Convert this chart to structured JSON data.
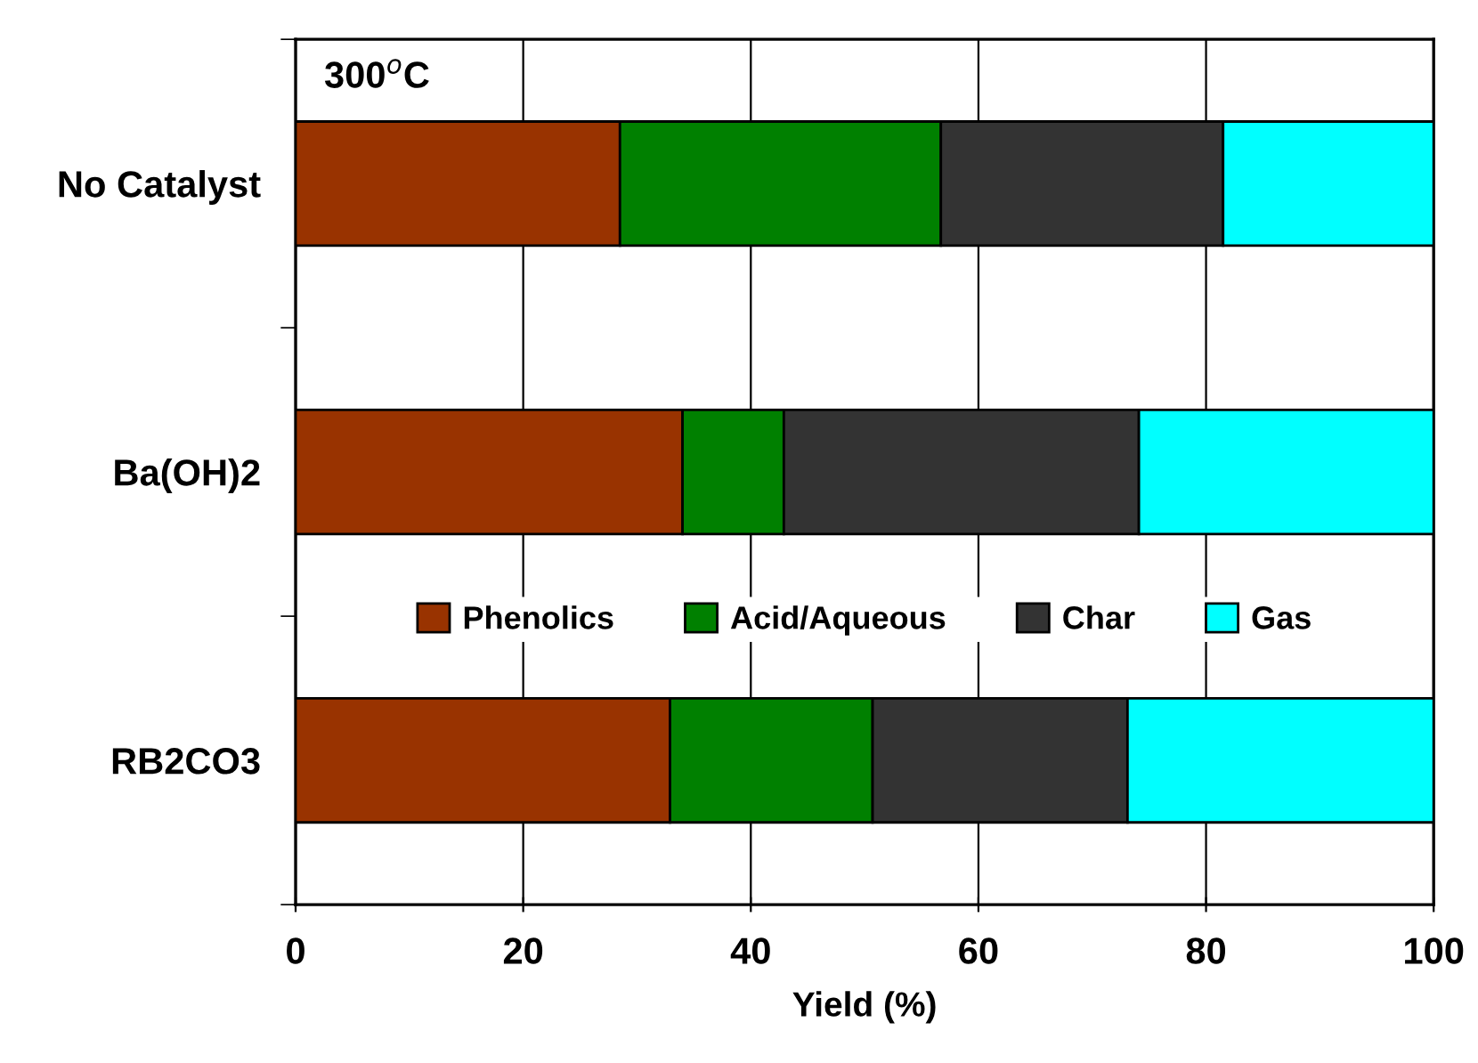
{
  "chart_data": {
    "type": "bar",
    "orientation": "horizontal",
    "stacked": true,
    "annotations": [
      "300$^{o}$C"
    ],
    "categories": [
      "No Catalyst",
      "Ba(OH)2",
      "RB2CO3"
    ],
    "series": [
      {
        "name": "Phenolics",
        "color": "#993300",
        "values": [
          28.5,
          34.0,
          32.9
        ]
      },
      {
        "name": "Acid/Aqueous",
        "color": "#008000",
        "values": [
          28.2,
          8.9,
          17.8
        ]
      },
      {
        "name": "Char",
        "color": "#333333",
        "values": [
          24.8,
          31.2,
          22.4
        ]
      },
      {
        "name": "Gas",
        "color": "#00ffff",
        "values": [
          18.5,
          25.9,
          26.9
        ]
      }
    ],
    "xlabel": "Yield (%)",
    "xlim": [
      0,
      100
    ],
    "xticks": [
      0,
      20,
      40,
      60,
      80,
      100
    ],
    "grid": "x",
    "legend": "lower center"
  }
}
